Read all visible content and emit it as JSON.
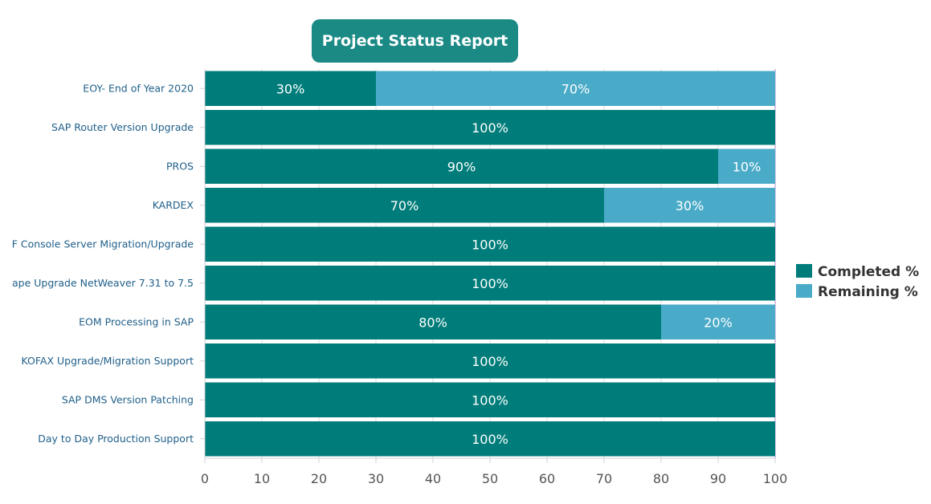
{
  "chart_data": {
    "type": "bar",
    "orientation": "horizontal",
    "stacked": true,
    "title": "Project Status Report",
    "categories": [
      "EOY- End of Year 2020",
      "SAP Router Version Upgrade",
      "PROS",
      "KARDEX",
      "F Console Server Migration/Upgrade",
      "ape Upgrade NetWeaver 7.31 to 7.5",
      "EOM Processing in SAP",
      "KOFAX Upgrade/Migration Support",
      "SAP DMS Version Patching",
      "Day to Day Production Support"
    ],
    "series": [
      {
        "name": "Completed %",
        "color": "#007d7a",
        "values": [
          30,
          100,
          90,
          70,
          100,
          100,
          80,
          100,
          100,
          100
        ],
        "labels": [
          "30%",
          "100%",
          "90%",
          "70%",
          "100%",
          "100%",
          "80%",
          "100%",
          "100%",
          "100%"
        ]
      },
      {
        "name": "Remaining %",
        "color": "#4aabc8",
        "values": [
          70,
          0,
          10,
          30,
          0,
          0,
          20,
          0,
          0,
          0
        ],
        "labels": [
          "70%",
          "",
          "10%",
          "30%",
          "",
          "",
          "20%",
          "",
          "",
          ""
        ]
      }
    ],
    "xlim": [
      0,
      100
    ],
    "xticks": [
      "0",
      "10",
      "20",
      "30",
      "40",
      "50",
      "60",
      "70",
      "80",
      "90",
      "100"
    ],
    "grid": true,
    "legend": "right"
  },
  "colors": {
    "title_bg": "#1b8a85",
    "category_label": "#1f5f8a",
    "tick_label": "#555555",
    "gridline": "#dedede",
    "axis": "#cfcfd8"
  }
}
